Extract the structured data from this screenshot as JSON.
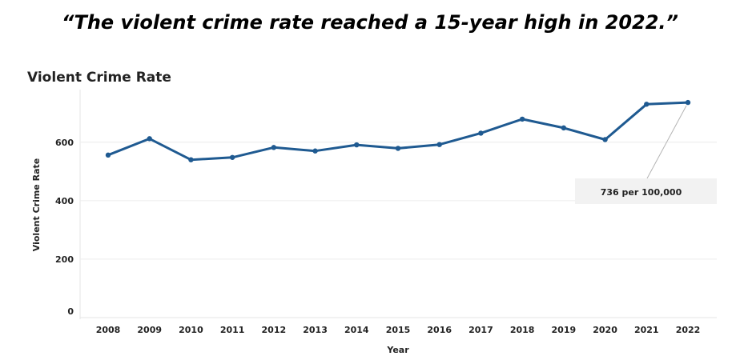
{
  "headline": "“The violent crime rate reached a 15-year high in 2022.”",
  "chart_data": {
    "type": "line",
    "title": "Violent Crime Rate",
    "xlabel": "Year",
    "ylabel": "Violent Crime Rate",
    "x": [
      "2008",
      "2009",
      "2010",
      "2011",
      "2012",
      "2013",
      "2014",
      "2015",
      "2016",
      "2017",
      "2018",
      "2019",
      "2020",
      "2021",
      "2022"
    ],
    "series": [
      {
        "values": [
          556,
          612,
          540,
          548,
          582,
          570,
          591,
          579,
          592,
          631,
          679,
          649,
          609,
          730,
          736
        ]
      }
    ],
    "yticks": [
      0,
      200,
      400,
      600
    ],
    "ylim": [
      0,
      780
    ],
    "grid": true,
    "line_color": "#1f5a91",
    "annotation": {
      "x": "2022",
      "text": "736 per 100,000"
    }
  }
}
